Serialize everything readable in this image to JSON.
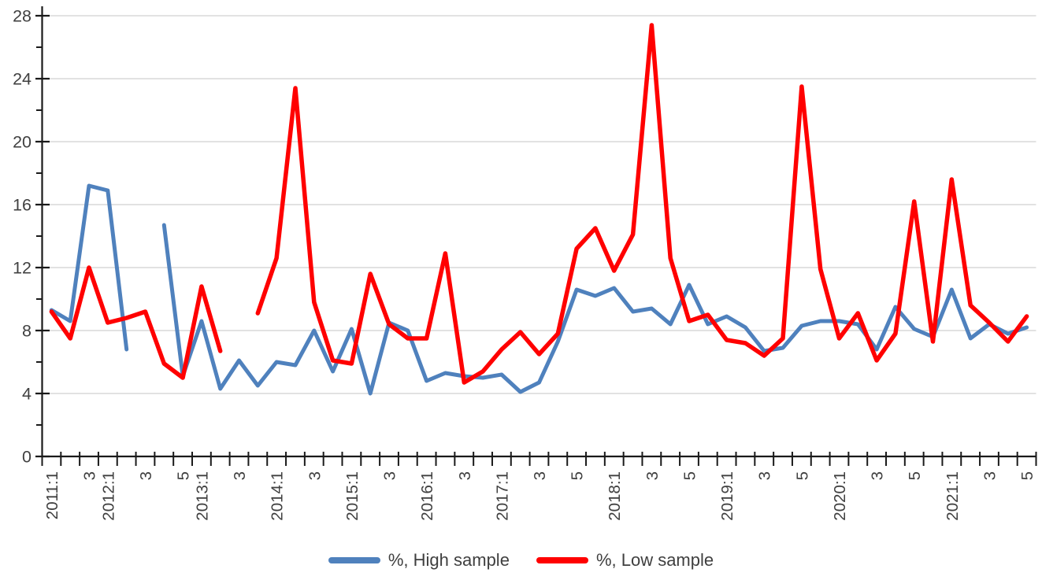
{
  "chart_data": {
    "type": "line",
    "title": "",
    "categories": [
      "2011:1",
      "2011:2",
      "2011:3",
      "2012:1",
      "2012:2",
      "2012:3",
      "2012:4",
      "2012:5",
      "2013:1",
      "2013:2",
      "2013:3",
      "2013:4",
      "2014:1",
      "2014:2",
      "2014:3",
      "2014:4",
      "2015:1",
      "2015:2",
      "2015:3",
      "2015:4",
      "2016:1",
      "2016:2",
      "2016:3",
      "2016:4",
      "2017:1",
      "2017:2",
      "2017:3",
      "2017:4",
      "2017:5",
      "2017:6",
      "2018:1",
      "2018:2",
      "2018:3",
      "2018:4",
      "2018:5",
      "2018:6",
      "2019:1",
      "2019:2",
      "2019:3",
      "2019:4",
      "2019:5",
      "2019:6",
      "2020:1",
      "2020:2",
      "2020:3",
      "2020:4",
      "2020:5",
      "2020:6",
      "2021:1",
      "2021:2",
      "2021:3",
      "2021:4",
      "2021:5"
    ],
    "x_tick_labels": [
      "2011:1",
      "",
      "3",
      "2012:1",
      "",
      "3",
      "",
      "5",
      "2013:1",
      "",
      "3",
      "",
      "2014:1",
      "",
      "3",
      "",
      "2015:1",
      "",
      "3",
      "",
      "2016:1",
      "",
      "3",
      "",
      "2017:1",
      "",
      "3",
      "",
      "5",
      "",
      "2018:1",
      "",
      "3",
      "",
      "5",
      "",
      "2019:1",
      "",
      "3",
      "",
      "5",
      "",
      "2020:1",
      "",
      "3",
      "",
      "5",
      "",
      "2021:1",
      "",
      "3",
      "",
      "5"
    ],
    "series": [
      {
        "name": "%, High sample",
        "color": "#4F81BD",
        "values": [
          9.3,
          8.6,
          17.2,
          16.9,
          6.8,
          null,
          14.7,
          5.1,
          8.6,
          4.3,
          6.1,
          4.5,
          6.0,
          5.8,
          8.0,
          5.4,
          8.1,
          4.0,
          8.5,
          8.0,
          4.8,
          5.3,
          5.1,
          5.0,
          5.2,
          4.1,
          4.7,
          7.3,
          10.6,
          10.2,
          10.7,
          9.2,
          9.4,
          8.4,
          10.9,
          8.4,
          8.9,
          8.2,
          6.7,
          6.9,
          8.3,
          8.6,
          8.6,
          8.4,
          6.8,
          9.5,
          8.1,
          7.6,
          10.6,
          7.5,
          8.4,
          7.8,
          8.2
        ]
      },
      {
        "name": "%, Low sample",
        "color": "#FF0000",
        "values": [
          9.2,
          7.5,
          12.0,
          8.5,
          8.8,
          9.2,
          5.9,
          5.0,
          10.8,
          6.7,
          null,
          9.1,
          12.6,
          23.4,
          9.8,
          6.1,
          5.9,
          11.6,
          8.4,
          7.5,
          7.5,
          12.9,
          4.7,
          5.4,
          6.8,
          7.9,
          6.5,
          7.8,
          13.2,
          14.5,
          11.8,
          14.1,
          27.4,
          12.6,
          8.6,
          9.0,
          7.4,
          7.2,
          6.4,
          7.5,
          23.5,
          11.9,
          7.5,
          9.1,
          6.1,
          7.8,
          16.2,
          7.3,
          17.6,
          9.6,
          8.5,
          7.3,
          8.9
        ]
      }
    ],
    "y_axis": {
      "min": 0,
      "max": 28,
      "ticks": [
        0,
        4,
        8,
        12,
        16,
        20,
        24,
        28
      ],
      "minor_step": 2
    },
    "xlabel": "",
    "ylabel": "",
    "grid": "horizontal-major",
    "legend_position": "bottom",
    "colors": {
      "grid": "#D9D9D9",
      "axis": "#1A1A1A",
      "tick_label": "#404040",
      "background": "#FFFFFF"
    }
  },
  "legend": {
    "items": [
      {
        "label": "%, High sample"
      },
      {
        "label": "%, Low sample"
      }
    ]
  }
}
